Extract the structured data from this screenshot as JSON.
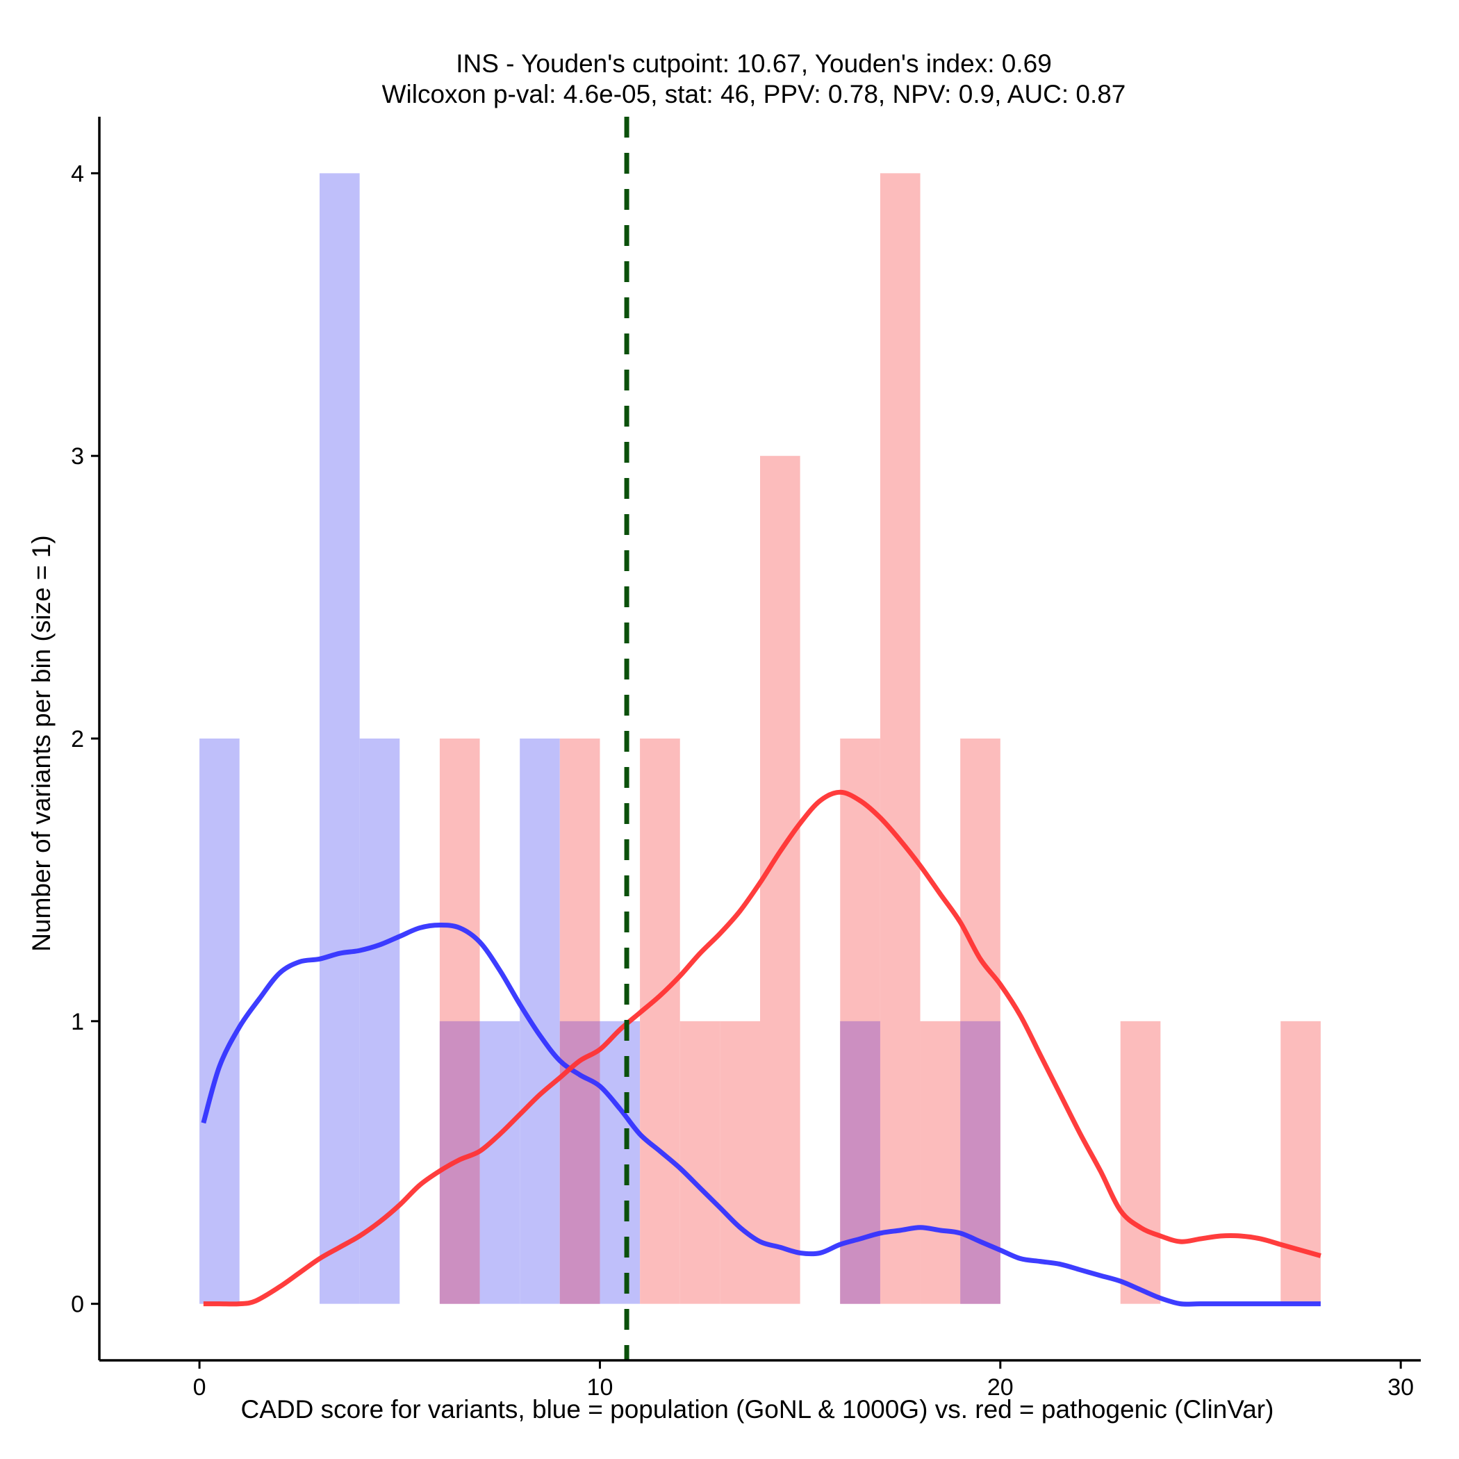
{
  "chart_data": {
    "type": "histogram",
    "title": [
      "INS - Youden's cutpoint: 10.67, Youden's index: 0.69",
      "Wilcoxon p-val: 4.6e-05, stat: 46, PPV: 0.78, NPV: 0.9, AUC: 0.87"
    ],
    "xlabel": "CADD score for variants, blue = population (GoNL & 1000G) vs. red = pathogenic (ClinVar)",
    "ylabel": "Number of variants per bin (size = 1)",
    "xlim": [
      -2.5,
      30.5
    ],
    "ylim": [
      -0.2,
      4.2
    ],
    "x_ticks": [
      0,
      10,
      20,
      30
    ],
    "y_ticks": [
      0,
      1,
      2,
      3,
      4
    ],
    "bin_size": 1,
    "cutpoint": 10.67,
    "series": [
      {
        "name": "population (GoNL & 1000G)",
        "color": "#3333ff",
        "bar_color": "#bfbffa",
        "bins": [
          [
            0,
            2
          ],
          [
            3,
            4
          ],
          [
            4,
            2
          ],
          [
            6,
            1
          ],
          [
            7,
            1
          ],
          [
            8,
            2
          ],
          [
            9,
            1
          ],
          [
            10,
            1
          ],
          [
            16,
            1
          ],
          [
            19,
            1
          ]
        ],
        "density": [
          [
            0.1,
            0.64
          ],
          [
            0.5,
            0.84
          ],
          [
            1,
            0.98
          ],
          [
            1.5,
            1.08
          ],
          [
            2,
            1.17
          ],
          [
            2.5,
            1.21
          ],
          [
            3,
            1.22
          ],
          [
            3.5,
            1.24
          ],
          [
            4,
            1.25
          ],
          [
            4.5,
            1.27
          ],
          [
            5,
            1.3
          ],
          [
            5.5,
            1.33
          ],
          [
            6,
            1.34
          ],
          [
            6.5,
            1.33
          ],
          [
            7,
            1.28
          ],
          [
            7.5,
            1.18
          ],
          [
            8,
            1.06
          ],
          [
            8.5,
            0.95
          ],
          [
            9,
            0.86
          ],
          [
            9.5,
            0.81
          ],
          [
            10,
            0.77
          ],
          [
            10.5,
            0.69
          ],
          [
            11,
            0.6
          ],
          [
            11.5,
            0.54
          ],
          [
            12,
            0.48
          ],
          [
            12.5,
            0.41
          ],
          [
            13,
            0.34
          ],
          [
            13.5,
            0.27
          ],
          [
            14,
            0.22
          ],
          [
            14.5,
            0.2
          ],
          [
            15,
            0.18
          ],
          [
            15.5,
            0.18
          ],
          [
            16,
            0.21
          ],
          [
            16.5,
            0.23
          ],
          [
            17,
            0.25
          ],
          [
            17.5,
            0.26
          ],
          [
            18,
            0.27
          ],
          [
            18.5,
            0.26
          ],
          [
            19,
            0.25
          ],
          [
            19.5,
            0.22
          ],
          [
            20,
            0.19
          ],
          [
            20.5,
            0.16
          ],
          [
            21,
            0.15
          ],
          [
            21.5,
            0.14
          ],
          [
            22,
            0.12
          ],
          [
            22.5,
            0.1
          ],
          [
            23,
            0.08
          ],
          [
            23.5,
            0.05
          ],
          [
            24,
            0.02
          ],
          [
            24.5,
            0.0
          ],
          [
            25,
            0.0
          ],
          [
            26,
            0.0
          ],
          [
            27,
            0.0
          ],
          [
            28,
            0.0
          ]
        ]
      },
      {
        "name": "pathogenic (ClinVar)",
        "color": "#ff3333",
        "bar_color": "#fcbcbc",
        "bins": [
          [
            6,
            2
          ],
          [
            9,
            2
          ],
          [
            11,
            2
          ],
          [
            12,
            1
          ],
          [
            13,
            1
          ],
          [
            14,
            3
          ],
          [
            16,
            2
          ],
          [
            17,
            4
          ],
          [
            18,
            1
          ],
          [
            19,
            2
          ],
          [
            23,
            1
          ],
          [
            27,
            1
          ]
        ],
        "density": [
          [
            0.1,
            0.0
          ],
          [
            0.5,
            0.0
          ],
          [
            1,
            0.0
          ],
          [
            1.4,
            0.01
          ],
          [
            2,
            0.06
          ],
          [
            2.5,
            0.11
          ],
          [
            3,
            0.16
          ],
          [
            3.5,
            0.2
          ],
          [
            4,
            0.24
          ],
          [
            4.5,
            0.29
          ],
          [
            5,
            0.35
          ],
          [
            5.5,
            0.42
          ],
          [
            6,
            0.47
          ],
          [
            6.5,
            0.51
          ],
          [
            7,
            0.54
          ],
          [
            7.5,
            0.6
          ],
          [
            8,
            0.67
          ],
          [
            8.5,
            0.74
          ],
          [
            9,
            0.8
          ],
          [
            9.5,
            0.86
          ],
          [
            10,
            0.9
          ],
          [
            10.5,
            0.97
          ],
          [
            11,
            1.03
          ],
          [
            11.5,
            1.09
          ],
          [
            12,
            1.16
          ],
          [
            12.5,
            1.24
          ],
          [
            13,
            1.31
          ],
          [
            13.5,
            1.39
          ],
          [
            14,
            1.49
          ],
          [
            14.5,
            1.6
          ],
          [
            15,
            1.7
          ],
          [
            15.5,
            1.78
          ],
          [
            16,
            1.81
          ],
          [
            16.5,
            1.78
          ],
          [
            17,
            1.72
          ],
          [
            17.5,
            1.64
          ],
          [
            18,
            1.55
          ],
          [
            18.5,
            1.45
          ],
          [
            19,
            1.35
          ],
          [
            19.5,
            1.22
          ],
          [
            20,
            1.13
          ],
          [
            20.5,
            1.02
          ],
          [
            21,
            0.88
          ],
          [
            21.5,
            0.74
          ],
          [
            22,
            0.6
          ],
          [
            22.5,
            0.47
          ],
          [
            23,
            0.33
          ],
          [
            23.5,
            0.27
          ],
          [
            24,
            0.24
          ],
          [
            24.5,
            0.22
          ],
          [
            25,
            0.23
          ],
          [
            25.5,
            0.24
          ],
          [
            26,
            0.24
          ],
          [
            26.5,
            0.23
          ],
          [
            27,
            0.21
          ],
          [
            27.5,
            0.19
          ],
          [
            28,
            0.17
          ]
        ]
      }
    ]
  }
}
